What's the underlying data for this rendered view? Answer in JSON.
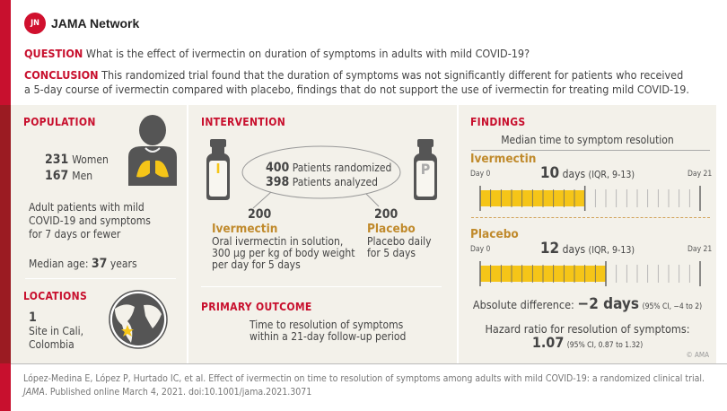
{
  "brand": {
    "name": "JAMA Network",
    "mark": "JN"
  },
  "question": {
    "label": "QUESTION",
    "text": "What is the effect of ivermectin on duration of symptoms in adults with mild COVID-19?"
  },
  "conclusion": {
    "label": "CONCLUSION",
    "line1": "This randomized trial found that the duration of symptoms was not significantly different for patients who received",
    "line2": "a 5-day course of ivermectin compared with placebo, findings that do not support the use of ivermectin for treating mild COVID-19."
  },
  "population": {
    "title": "POPULATION",
    "women_n": "231",
    "women": "Women",
    "men_n": "167",
    "men": "Men",
    "desc": [
      "Adult patients with mild",
      "COVID-19 and symptoms",
      "for 7 days or fewer"
    ],
    "age_label": "Median age:",
    "age": "37",
    "age_unit": "years"
  },
  "locations": {
    "title": "LOCATIONS",
    "n": "1",
    "desc": [
      "Site in Cali,",
      "Colombia"
    ]
  },
  "intervention": {
    "title": "INTERVENTION",
    "vial_a": "I",
    "vial_b": "P",
    "randomized_n": "400",
    "randomized": "Patients randomized",
    "analyzed_n": "398",
    "analyzed": "Patients analyzed",
    "arm_a": {
      "n": "200",
      "name": "Ivermectin",
      "desc": [
        "Oral ivermectin in solution,",
        "300 µg per kg of body weight",
        "per day for 5 days"
      ]
    },
    "arm_b": {
      "n": "200",
      "name": "Placebo",
      "desc": [
        "Placebo daily",
        "for 5 days"
      ]
    }
  },
  "outcome": {
    "title": "PRIMARY OUTCOME",
    "desc": [
      "Time to resolution of symptoms",
      "within a 21-day follow-up period"
    ]
  },
  "findings": {
    "title": "FINDINGS",
    "subtitle": "Median time to symptom resolution",
    "day0": "Day 0",
    "day21": "Day 21",
    "total_days": 21,
    "arms": [
      {
        "name": "Ivermectin",
        "days": 10,
        "days_text": "10",
        "unit": "days",
        "iqr": "(IQR, 9-13)"
      },
      {
        "name": "Placebo",
        "days": 12,
        "days_text": "12",
        "unit": "days",
        "iqr": "(IQR, 9-13)"
      }
    ],
    "diff_label": "Absolute difference:",
    "diff": "−2 days",
    "diff_ci": "(95% CI, −4 to 2)",
    "hr_label": "Hazard ratio for resolution of symptoms:",
    "hr": "1.07",
    "hr_ci": "(95% CI, 0.87 to 1.32)",
    "copyright": "© AMA"
  },
  "citation": {
    "line1": "López-Medina E, López P, Hurtado IC, et al. Effect of ivermectin on time to resolution of symptoms among adults with mild COVID-19: a randomized clinical trial.",
    "journal": "JAMA",
    "line2": ". Published online March 4, 2021. doi:10.1001/jama.2021.3071"
  },
  "colors": {
    "red": "#c8102e",
    "dark_red": "#9b1b22",
    "gold": "#f5c518",
    "panel": "#f3f1ea",
    "arm_text": "#c08a2c"
  }
}
